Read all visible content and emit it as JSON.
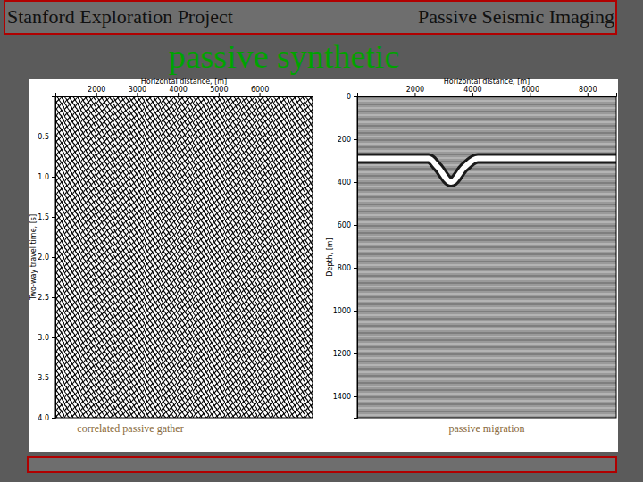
{
  "slide": {
    "header_left": "Stanford Exploration Project",
    "header_right": "Passive Seismic Imaging",
    "title": "passive synthetic"
  },
  "chart_data": [
    {
      "type": "image",
      "title": "correlated passive gather",
      "x_label": "Horizontal distance, [m]",
      "y_label": "Two-way travel time, [s]",
      "xlim": [
        1000,
        7300
      ],
      "xticks": [
        2000,
        3000,
        4000,
        5000,
        6000
      ],
      "ylim": [
        0,
        4
      ],
      "yticks": [
        0.5,
        {
          "value": 1,
          "label": "1.0"
        },
        1.5,
        {
          "value": 2,
          "label": "2.0"
        },
        2.5,
        {
          "value": 3,
          "label": "3.0"
        },
        3.5,
        {
          "value": 4,
          "label": "4.0"
        }
      ]
    },
    {
      "type": "line",
      "title": "passive migration",
      "x_label": "Horizontal distance, [m]",
      "y_label": "Depth, [m]",
      "xlim": [
        0,
        9000
      ],
      "xticks": [
        2000,
        4000,
        6000,
        8000
      ],
      "ylim": [
        0,
        1500
      ],
      "yticks": [
        0,
        200,
        400,
        600,
        800,
        1000,
        1200,
        1400
      ],
      "x": [
        0,
        2480,
        2800,
        3260,
        3730,
        4190,
        9000
      ],
      "values": [
        290,
        290,
        330,
        400,
        330,
        290,
        290
      ]
    }
  ]
}
